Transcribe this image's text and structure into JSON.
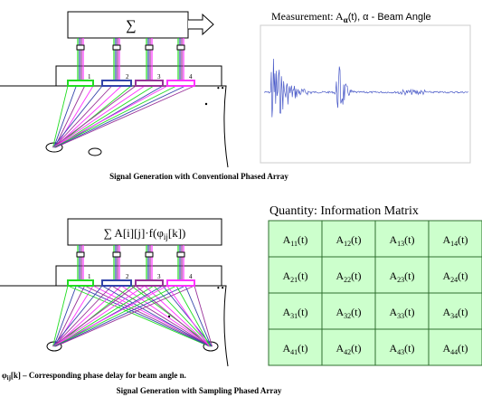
{
  "top": {
    "sum_symbol": "∑",
    "element_numbers": [
      "1",
      "2",
      "3",
      "4"
    ],
    "dots": "• •",
    "measurement": {
      "pre": "Measurement: A",
      "sub": "α",
      "post": "(t), α - Beam Angle"
    },
    "caption": "Signal Generation with Conventional Phased Array"
  },
  "bottom": {
    "formula": {
      "pre": "∑ A[i][j]·f(φ",
      "sub": "ij",
      "post": "[k])"
    },
    "element_numbers": [
      "1",
      "2",
      "3",
      "4"
    ],
    "dots": "• •",
    "note": {
      "pre": "φ",
      "sub": "ij",
      "post": "[k] – Corresponding phase delay for beam angle n."
    },
    "caption": "Signal Generation with Sampling Phased Array"
  },
  "matrix": {
    "title": "Quantity: Information Matrix",
    "symbol": "A",
    "suffix": "(t)",
    "rows": [
      [
        "11",
        "12",
        "13",
        "14"
      ],
      [
        "21",
        "22",
        "23",
        "24"
      ],
      [
        "31",
        "32",
        "33",
        "34"
      ],
      [
        "41",
        "42",
        "43",
        "44"
      ]
    ]
  }
}
